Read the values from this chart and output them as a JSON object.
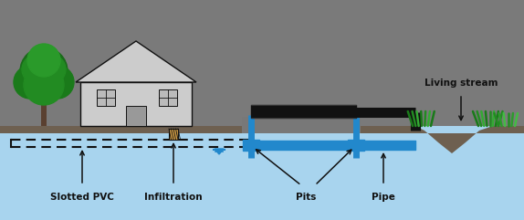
{
  "bg_color": "#7a7a7a",
  "ground_color": "#8a7a68",
  "water_color": "#a8d4ee",
  "tree_dark": "#1a6b1a",
  "tree_mid": "#228B22",
  "trunk_color": "#5a4030",
  "house_color": "#cccccc",
  "pipe_blue": "#2288cc",
  "pipe_black": "#111111",
  "grass_green": "#2d8c2d",
  "grass_light": "#44bb44",
  "text_color": "#000000",
  "labels": {
    "slotted_pvc": "Slotted PVC",
    "infiltration": "Infiltration",
    "pits": "Pits",
    "pipe": "Pipe",
    "living_stream": "Living stream"
  },
  "fig_width": 5.74,
  "fig_height": 2.41,
  "dpi": 100
}
